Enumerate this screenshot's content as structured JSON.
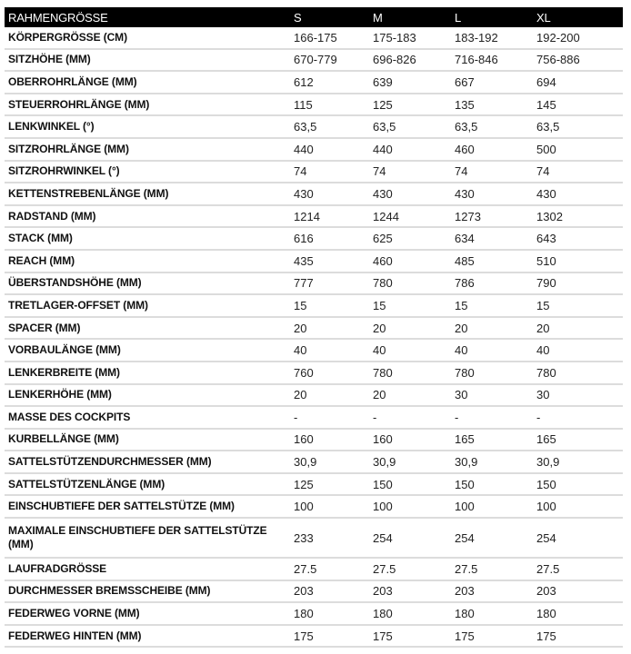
{
  "table": {
    "headers": [
      "RAHMENGRÖSSE",
      "S",
      "M",
      "L",
      "XL"
    ],
    "rows": [
      {
        "label": "KÖRPERGRÖSSE (CM)",
        "values": [
          "166-175",
          "175-183",
          "183-192",
          "192-200"
        ]
      },
      {
        "label": "SITZHÖHE (MM)",
        "values": [
          "670-779",
          "696-826",
          "716-846",
          "756-886"
        ]
      },
      {
        "label": "OBERROHRLÄNGE (MM)",
        "values": [
          "612",
          "639",
          "667",
          "694"
        ]
      },
      {
        "label": "STEUERROHRLÄNGE (MM)",
        "values": [
          "115",
          "125",
          "135",
          "145"
        ]
      },
      {
        "label": "LENKWINKEL (°)",
        "values": [
          "63,5",
          "63,5",
          "63,5",
          "63,5"
        ]
      },
      {
        "label": "SITZROHRLÄNGE (MM)",
        "values": [
          "440",
          "440",
          "460",
          "500"
        ]
      },
      {
        "label": "SITZROHRWINKEL (°)",
        "values": [
          "74",
          "74",
          "74",
          "74"
        ]
      },
      {
        "label": "KETTENSTREBENLÄNGE (MM)",
        "values": [
          "430",
          "430",
          "430",
          "430"
        ]
      },
      {
        "label": "RADSTAND (MM)",
        "values": [
          "1214",
          "1244",
          "1273",
          "1302"
        ]
      },
      {
        "label": "STACK (MM)",
        "values": [
          "616",
          "625",
          "634",
          "643"
        ]
      },
      {
        "label": "REACH (MM)",
        "values": [
          "435",
          "460",
          "485",
          "510"
        ]
      },
      {
        "label": "ÜBERSTANDSHÖHE (MM)",
        "values": [
          "777",
          "780",
          "786",
          "790"
        ]
      },
      {
        "label": "TRETLAGER-OFFSET (MM)",
        "values": [
          "15",
          "15",
          "15",
          "15"
        ]
      },
      {
        "label": "SPACER (MM)",
        "values": [
          "20",
          "20",
          "20",
          "20"
        ]
      },
      {
        "label": "VORBAULÄNGE (MM)",
        "values": [
          "40",
          "40",
          "40",
          "40"
        ]
      },
      {
        "label": "LENKERBREITE (MM)",
        "values": [
          "760",
          "780",
          "780",
          "780"
        ]
      },
      {
        "label": "LENKERHÖHE (MM)",
        "values": [
          "20",
          "20",
          "30",
          "30"
        ]
      },
      {
        "label": "MASSE DES COCKPITS",
        "values": [
          "-",
          "-",
          "-",
          "-"
        ]
      },
      {
        "label": "KURBELLÄNGE (MM)",
        "values": [
          "160",
          "160",
          "165",
          "165"
        ]
      },
      {
        "label": "SATTELSTÜTZENDURCHMESSER (MM)",
        "values": [
          "30,9",
          "30,9",
          "30,9",
          "30,9"
        ]
      },
      {
        "label": "SATTELSTÜTZENLÄNGE (MM)",
        "values": [
          "125",
          "150",
          "150",
          "150"
        ]
      },
      {
        "label": "EINSCHUBTIEFE DER SATTELSTÜTZE (MM)",
        "values": [
          "100",
          "100",
          "100",
          "100"
        ]
      },
      {
        "label": "MAXIMALE EINSCHUBTIEFE DER SATTELSTÜTZE (MM)",
        "values": [
          "233",
          "254",
          "254",
          "254"
        ]
      },
      {
        "label": "LAUFRADGRÖSSE",
        "values": [
          "27.5",
          "27.5",
          "27.5",
          "27.5"
        ]
      },
      {
        "label": "DURCHMESSER BREMSSCHEIBE (MM)",
        "values": [
          "203",
          "203",
          "203",
          "203"
        ]
      },
      {
        "label": "FEDERWEG VORNE (MM)",
        "values": [
          "180",
          "180",
          "180",
          "180"
        ]
      },
      {
        "label": "FEDERWEG HINTEN (MM)",
        "values": [
          "175",
          "175",
          "175",
          "175"
        ]
      }
    ]
  }
}
